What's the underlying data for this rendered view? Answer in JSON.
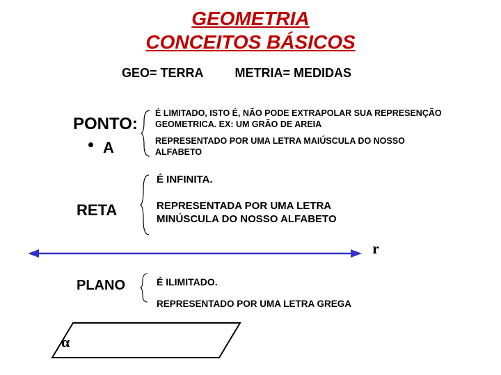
{
  "title": {
    "line1": "GEOMETRIA",
    "line2": "CONCEITOS BÁSICOS",
    "color": "#c00000",
    "fontsize": 28
  },
  "etymology": {
    "part1": "GEO= TERRA",
    "part2": "METRIA= MEDIDAS",
    "fontsize": 18
  },
  "ponto": {
    "label": "PONTO:",
    "point_letter": "A",
    "desc1": "É LIMITADO, ISTO É, NÃO PODE EXTRAPOLAR SUA REPRESENÇÃO\nGEOMETRICA. EX: UM GRÃO DE AREIA",
    "desc2": "REPRESENTADO POR UMA LETRA MAIÚSCULA  DO NOSSO\nALFABETO",
    "label_fontsize": 24
  },
  "reta": {
    "label": "RETA",
    "desc1": "É INFINITA.",
    "desc2": "REPRESENTADA POR UMA LETRA\nMINÚSCULA  DO NOSSO ALFABETO",
    "line_letter": "r",
    "line_color": "#3333cc",
    "label_fontsize": 22
  },
  "plano": {
    "label": "PLANO",
    "desc1": "É ILIMITADO.",
    "desc2": "REPRESENTADO POR UMA LETRA GREGA",
    "plane_letter": "α",
    "shape_stroke": "#000000",
    "label_fontsize": 20
  },
  "brace_color": "#000000",
  "background": "#ffffff"
}
